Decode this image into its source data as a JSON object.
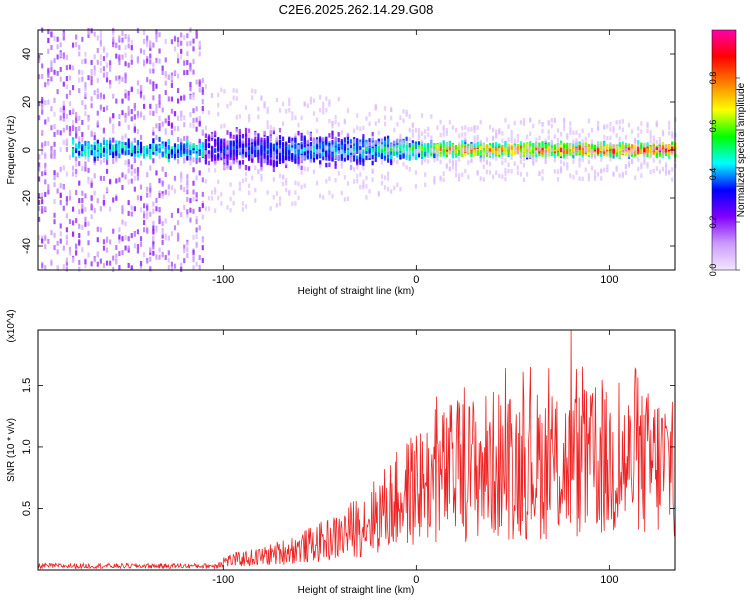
{
  "title": "C2E6.2025.262.14.29.G08",
  "chart_data": [
    {
      "type": "heatmap",
      "name": "spectrogram",
      "xlabel": "Height of straight line (km)",
      "ylabel": "Frequency (Hz)",
      "xlim": [
        -196,
        134
      ],
      "ylim": [
        -50,
        50
      ],
      "xticks": [
        -100,
        0,
        100
      ],
      "xtick_labels": [
        "-100",
        "0",
        "100"
      ],
      "yticks": [
        -40,
        -20,
        0,
        20,
        40
      ],
      "ytick_labels": [
        "-40",
        "-20",
        "0",
        "20",
        "40"
      ],
      "colorbar": {
        "label": "Normalized spectral amplitude",
        "range": [
          0,
          1
        ],
        "ticks": [
          0.0,
          0.2,
          0.4,
          0.6,
          0.8
        ],
        "tick_labels": [
          "0.0",
          "0.2",
          "0.4",
          "0.6",
          "0.8"
        ],
        "colors": [
          "#f2e6ff",
          "#cc99ff",
          "#8000ff",
          "#0000ff",
          "#00ffff",
          "#00ff00",
          "#ffff00",
          "#ff8000",
          "#ff0000",
          "#ff00aa"
        ]
      },
      "regions": [
        {
          "x_from": -196,
          "x_to": -110,
          "freq_spread": 50,
          "amplitude": 0.15,
          "note": "broadband noise"
        },
        {
          "x_from": -110,
          "x_to": -30,
          "freq_spread": 8,
          "amplitude": 0.4
        },
        {
          "x_from": -30,
          "x_to": 10,
          "freq_spread": 5,
          "amplitude": 0.5
        },
        {
          "x_from": 10,
          "x_to": 134,
          "freq_spread": 2,
          "amplitude": 0.9,
          "note": "narrow band near 0 Hz"
        }
      ]
    },
    {
      "type": "line",
      "name": "snr",
      "xlabel": "Height of straight line (km)",
      "ylabel": "SNR (10 * v/v)",
      "scale_label": "(x10^4)",
      "xlim": [
        -196,
        134
      ],
      "ylim": [
        0,
        1.95
      ],
      "xticks": [
        -100,
        0,
        100
      ],
      "xtick_labels": [
        "-100",
        "0",
        "100"
      ],
      "yticks": [
        0.5,
        1.0,
        1.5
      ],
      "ytick_labels": [
        "0.5",
        "1.0",
        "1.5"
      ],
      "color": "#ee2222",
      "envelope": [
        {
          "x": -196,
          "y": 0.03
        },
        {
          "x": -105,
          "y": 0.03
        },
        {
          "x": -100,
          "y": 0.08
        },
        {
          "x": -80,
          "y": 0.12
        },
        {
          "x": -60,
          "y": 0.2
        },
        {
          "x": -40,
          "y": 0.3
        },
        {
          "x": -20,
          "y": 0.5
        },
        {
          "x": 0,
          "y": 0.75
        },
        {
          "x": 20,
          "y": 0.9
        },
        {
          "x": 40,
          "y": 0.95
        },
        {
          "x": 60,
          "y": 0.95
        },
        {
          "x": 80,
          "y": 0.95
        },
        {
          "x": 100,
          "y": 0.95
        },
        {
          "x": 134,
          "y": 0.95
        }
      ],
      "peak": {
        "x": 80,
        "y": 1.95
      }
    }
  ]
}
